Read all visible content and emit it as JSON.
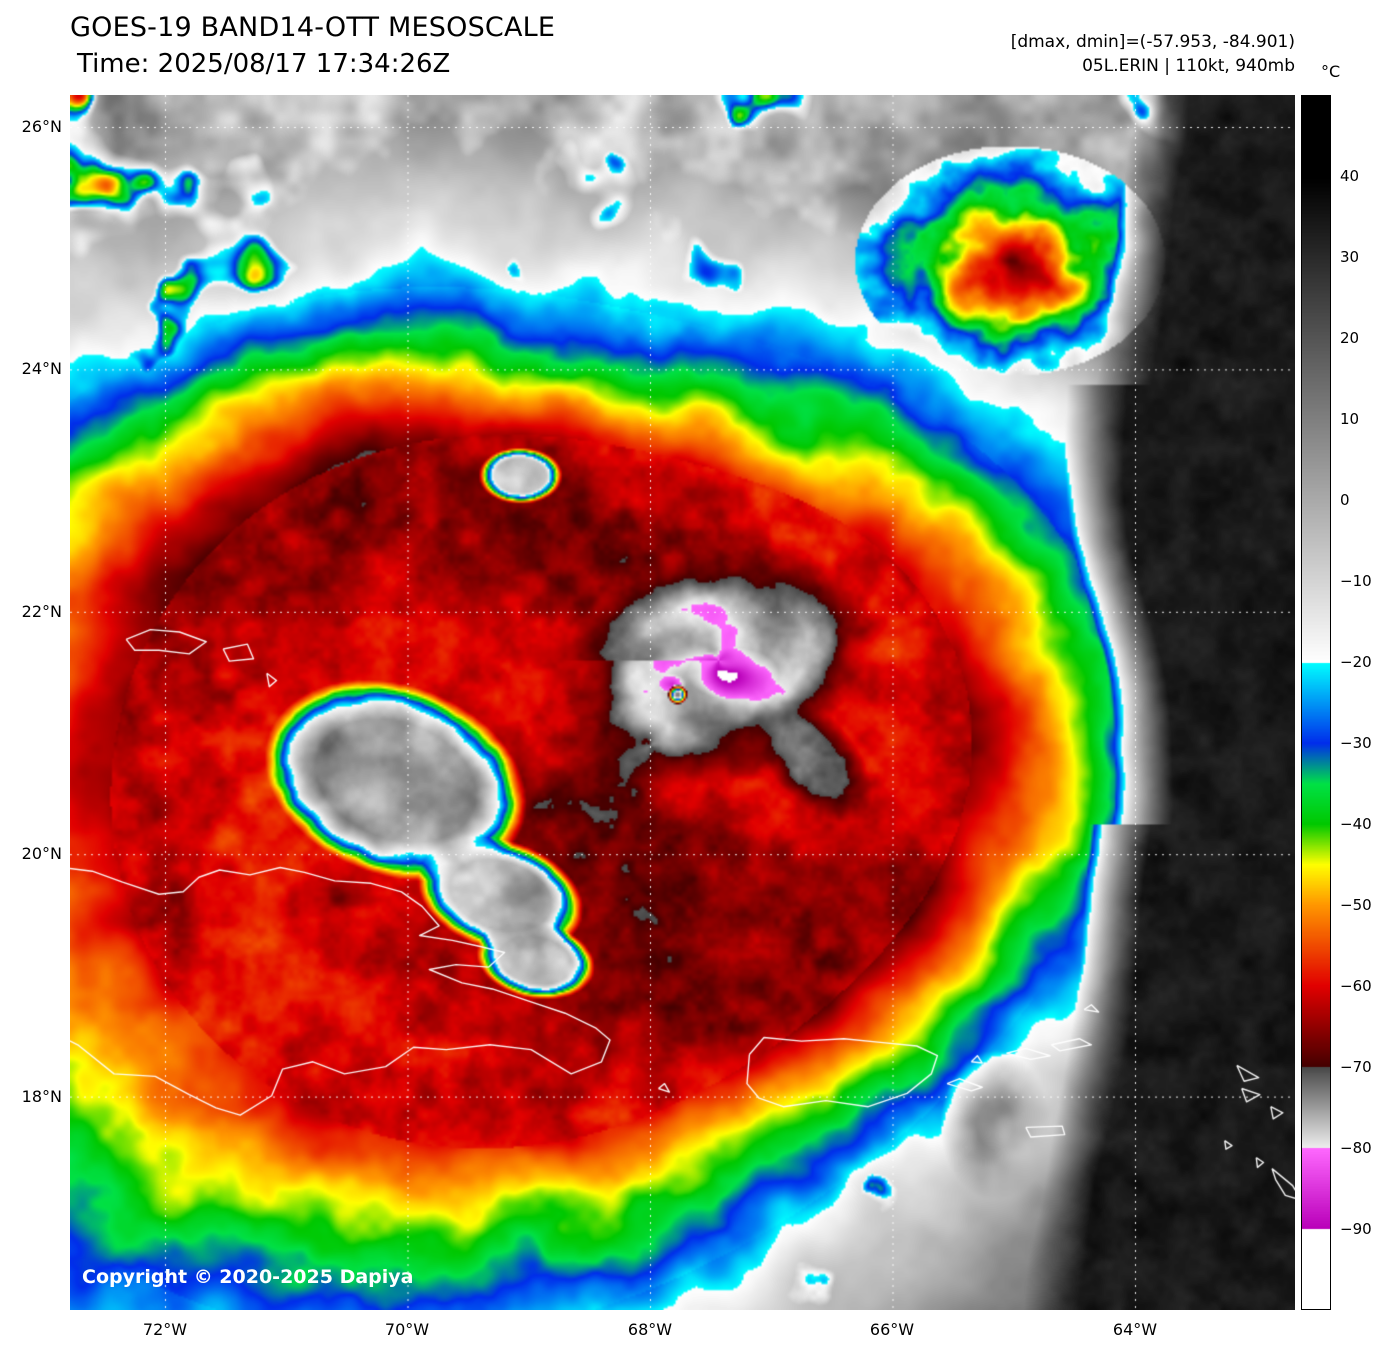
{
  "header": {
    "title": "GOES-19 BAND14-OTT MESOSCALE",
    "time": "Time: 2025/08/17 17:34:26Z",
    "dmax_dmin": "[dmax, dmin]=(-57.953, -84.901)",
    "storm": "05L.ERIN | 110kt, 940mb"
  },
  "map": {
    "copyright": "Copyright © 2020-2025 Dapiya",
    "lat_labels": [
      "26°N",
      "24°N",
      "22°N",
      "20°N",
      "18°N"
    ],
    "lon_labels": [
      "72°W",
      "70°W",
      "68°W",
      "66°W",
      "64°W"
    ]
  },
  "colorbar": {
    "unit": "°C",
    "ticks": [
      "40",
      "30",
      "20",
      "10",
      "0",
      "−10",
      "−20",
      "−30",
      "−40",
      "−50",
      "−60",
      "−70",
      "−80",
      "−90"
    ]
  }
}
